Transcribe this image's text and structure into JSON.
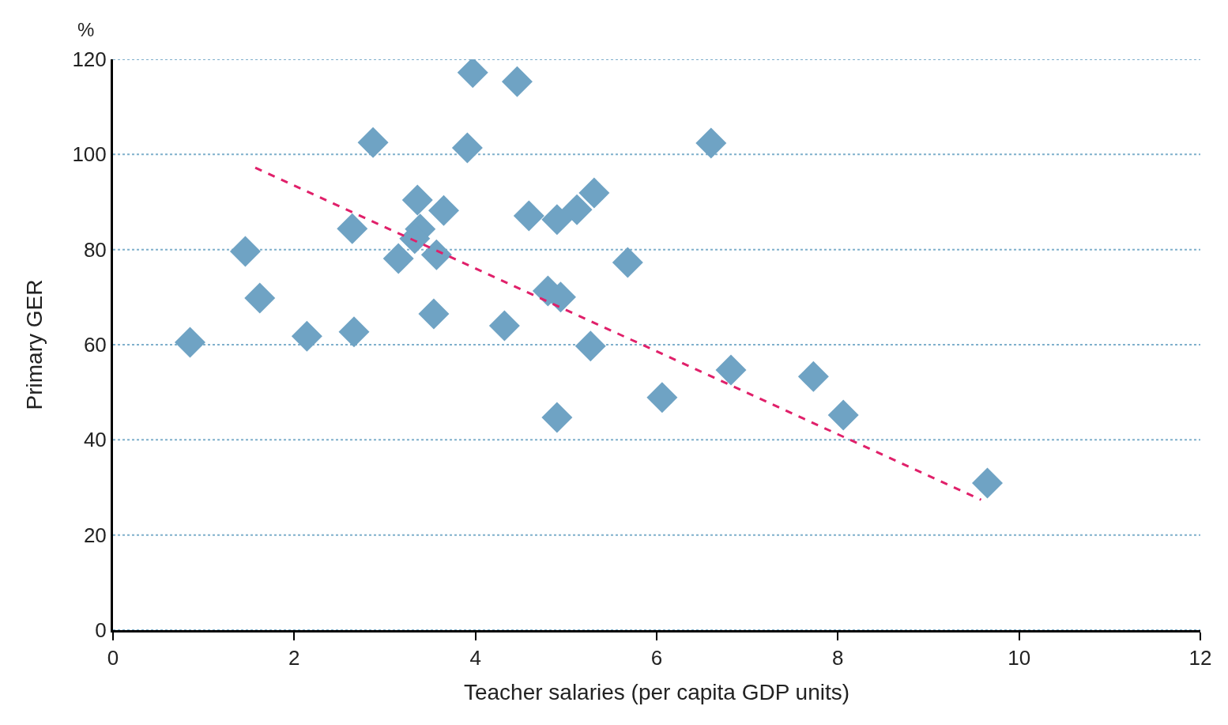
{
  "chart_data": {
    "type": "scatter",
    "xlabel": "Teacher salaries (per capita GDP units)",
    "ylabel": "Primary GER",
    "annotations": [
      "%"
    ],
    "xlim": [
      0,
      12
    ],
    "xticks": [
      0,
      2,
      4,
      6,
      8,
      10,
      12
    ],
    "ylim": [
      0,
      120
    ],
    "yticks": [
      0,
      20,
      40,
      60,
      80,
      100,
      120
    ],
    "grid": "y",
    "marker": "diamond",
    "series": [
      {
        "color": "#6fa3c4",
        "x": [
          0.85,
          1.46,
          1.62,
          2.14,
          2.64,
          2.66,
          2.87,
          3.15,
          3.36,
          3.39,
          3.33,
          3.57,
          3.65,
          3.54,
          3.97,
          3.91,
          4.46,
          4.32,
          4.59,
          4.9,
          5.12,
          5.31,
          4.8,
          4.94,
          5.27,
          4.9,
          5.68,
          6.06,
          6.6,
          6.82,
          7.73,
          8.06,
          9.65
        ],
        "values": [
          60.5,
          79.6,
          69.8,
          61.8,
          84.4,
          62.7,
          102.5,
          78.1,
          90.4,
          84.3,
          82.3,
          78.9,
          88.2,
          66.5,
          117.2,
          101.4,
          115.3,
          64,
          87.1,
          86.3,
          88.4,
          91.9,
          71.3,
          70,
          59.7,
          44.7,
          77.3,
          48.9,
          102.4,
          54.7,
          53.3,
          45.2,
          30.9
        ]
      },
      {
        "type": "line",
        "color": "#e0206a",
        "line_style": "dashed",
        "marker": "none",
        "x": [
          1.57,
          9.58
        ],
        "values": [
          97.2,
          27.4
        ]
      }
    ]
  }
}
